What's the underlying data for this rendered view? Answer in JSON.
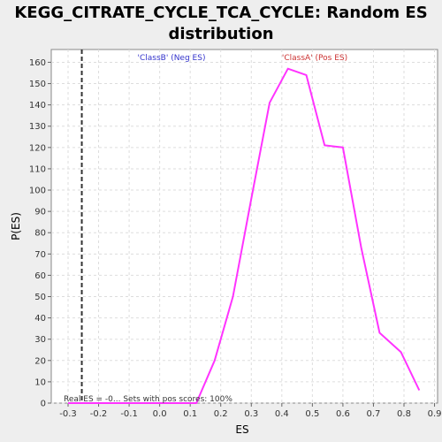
{
  "chart_data": {
    "type": "line",
    "title_line1": "KEGG_CITRATE_CYCLE_TCA_CYCLE: Random ES",
    "title_line2": "distribution",
    "xlabel": "ES",
    "ylabel": "P(ES)",
    "xlim": [
      -0.355,
      0.91
    ],
    "ylim": [
      0,
      166
    ],
    "x_ticks": [
      -0.3,
      -0.2,
      -0.1,
      0.0,
      0.1,
      0.2,
      0.3,
      0.4,
      0.5,
      0.6,
      0.7,
      0.8,
      0.9
    ],
    "x_tick_labels": [
      "-0.3",
      "-0.2",
      "-0.1",
      "0.0",
      "0.1",
      "0.2",
      "0.3",
      "0.4",
      "0.5",
      "0.6",
      "0.7",
      "0.8",
      "0.9"
    ],
    "y_ticks": [
      0,
      10,
      20,
      30,
      40,
      50,
      60,
      70,
      80,
      90,
      100,
      110,
      120,
      130,
      140,
      150,
      160
    ],
    "y_tick_labels": [
      "0",
      "10",
      "20",
      "30",
      "40",
      "50",
      "60",
      "70",
      "80",
      "90",
      "100",
      "110",
      "120",
      "130",
      "140",
      "150",
      "160"
    ],
    "grid": true,
    "series": [
      {
        "color": "#ff33ff",
        "x": [
          -0.3,
          -0.2,
          -0.1,
          0.0,
          0.12,
          0.18,
          0.24,
          0.3,
          0.36,
          0.42,
          0.48,
          0.54,
          0.6,
          0.66,
          0.72,
          0.79,
          0.85
        ],
        "y": [
          0,
          0,
          0,
          0,
          0,
          20,
          50,
          96,
          141,
          157,
          154,
          121,
          120,
          73,
          33,
          24,
          6
        ]
      }
    ],
    "real_es": -0.255,
    "real_es_color": "#333333",
    "legend_neg": {
      "text": "'ClassB' (Neg ES)",
      "color": "#3333cc"
    },
    "legend_pos": {
      "text": "'ClassA' (Pos ES)",
      "color": "#cc3333"
    },
    "annotation": "Real ES = -0... Sets with pos scores: 100%"
  }
}
